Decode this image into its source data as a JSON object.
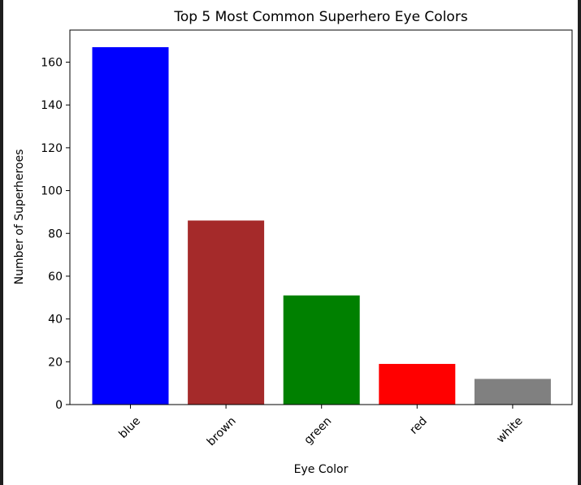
{
  "chart_data": {
    "type": "bar",
    "title": "Top 5 Most Common Superhero Eye Colors",
    "xlabel": "Eye Color",
    "ylabel": "Number of Superheroes",
    "categories": [
      "blue",
      "brown",
      "green",
      "red",
      "white"
    ],
    "values": [
      167,
      86,
      51,
      19,
      12
    ],
    "colors": [
      "#0000ff",
      "#a52a2a",
      "#008000",
      "#ff0000",
      "#808080"
    ],
    "ylim": [
      0,
      175
    ],
    "yticks": [
      0,
      20,
      40,
      60,
      80,
      100,
      120,
      140,
      160
    ],
    "xtick_rotation_deg": 45,
    "grid": false,
    "legend": "none"
  }
}
